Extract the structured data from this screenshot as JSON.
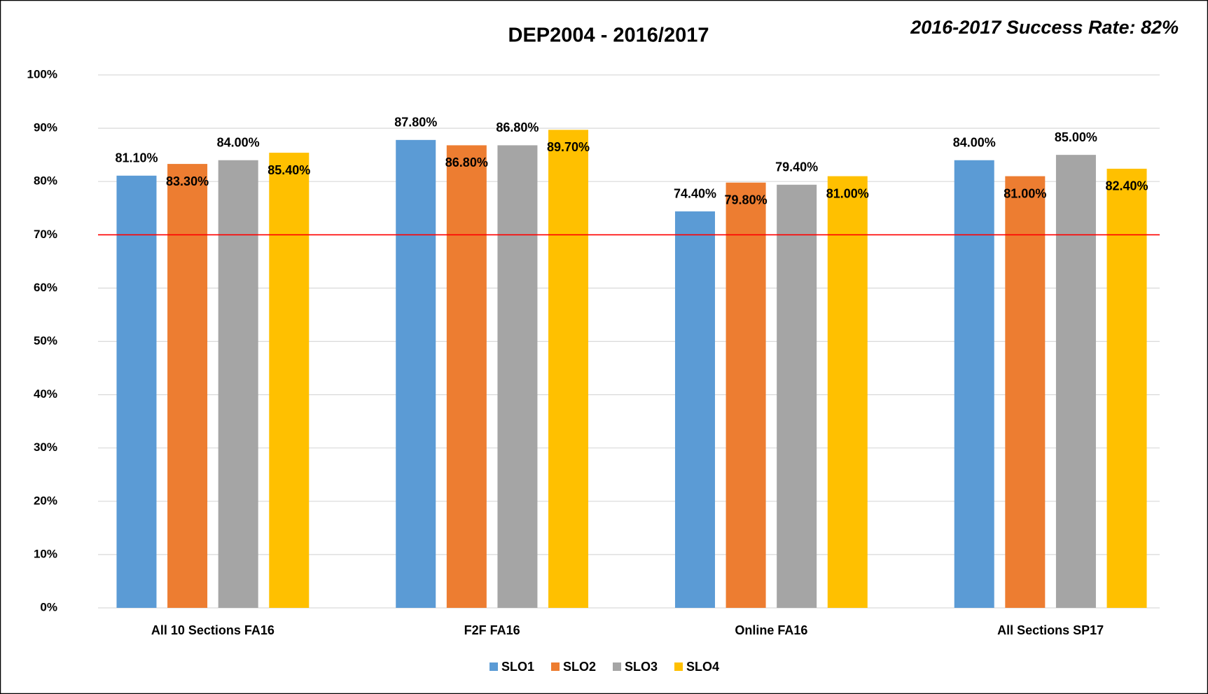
{
  "chart_data": {
    "type": "bar",
    "title": "DEP2004 - 2016/2017",
    "annotation": "2016-2017 Success Rate: 82%",
    "categories": [
      "All 10 Sections FA16",
      "F2F FA16",
      "Online FA16",
      "All Sections SP17"
    ],
    "series": [
      {
        "name": "SLO1",
        "color": "#5b9bd5",
        "values": [
          81.1,
          87.8,
          74.4,
          84.0
        ],
        "value_labels": [
          "81.10%",
          "87.80%",
          "74.40%",
          "84.00%"
        ]
      },
      {
        "name": "SLO2",
        "color": "#ed7d31",
        "values": [
          83.3,
          86.8,
          79.8,
          81.0
        ],
        "value_labels": [
          "83.30%",
          "86.80%",
          "79.80%",
          "81.00%"
        ]
      },
      {
        "name": "SLO3",
        "color": "#a5a5a5",
        "values": [
          84.0,
          86.8,
          79.4,
          85.0
        ],
        "value_labels": [
          "84.00%",
          "86.80%",
          "79.40%",
          "85.00%"
        ]
      },
      {
        "name": "SLO4",
        "color": "#ffc000",
        "values": [
          85.4,
          89.7,
          81.0,
          82.4
        ],
        "value_labels": [
          "85.40%",
          "89.70%",
          "81.00%",
          "82.40%"
        ]
      }
    ],
    "ylim": [
      0,
      100
    ],
    "yticks": [
      {
        "value": 0,
        "label": "0%"
      },
      {
        "value": 10,
        "label": "10%"
      },
      {
        "value": 20,
        "label": "20%"
      },
      {
        "value": 30,
        "label": "30%"
      },
      {
        "value": 40,
        "label": "40%"
      },
      {
        "value": 50,
        "label": "50%"
      },
      {
        "value": 60,
        "label": "60%"
      },
      {
        "value": 70,
        "label": "70%"
      },
      {
        "value": 80,
        "label": "80%"
      },
      {
        "value": 90,
        "label": "90%"
      },
      {
        "value": 100,
        "label": "100%"
      }
    ],
    "threshold": {
      "value": 70,
      "color": "#ff0000"
    },
    "grid": true,
    "legend": "bottom"
  }
}
